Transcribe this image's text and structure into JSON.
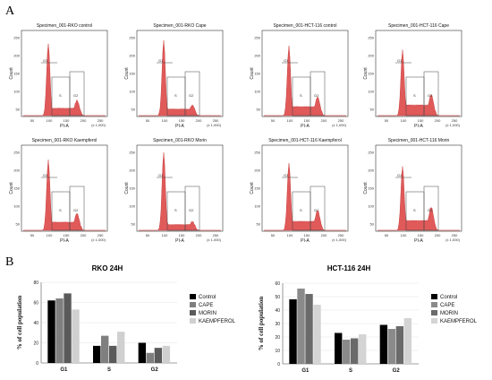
{
  "panel_a_label": "A",
  "panel_b_label": "B",
  "histogram_common": {
    "ylabel": "Count",
    "xlabel": "PI-A",
    "x_ticks": [
      "50",
      "100",
      "150",
      "200",
      "250"
    ],
    "x_scale_note": "(x 1,000)",
    "gate_labels": [
      "G1",
      "S",
      "G2"
    ]
  },
  "histograms": [
    {
      "title": "Specimen_001-RKO control",
      "y_ticks": [
        "250",
        "200",
        "150",
        "100",
        "50"
      ]
    },
    {
      "title": "Specimen_001-RKO Cape",
      "y_ticks": [
        "250",
        "200",
        "150",
        "100",
        "50"
      ]
    },
    {
      "title": "Specimen_001-HCT-116 control",
      "y_ticks": [
        "250",
        "200",
        "150",
        "100",
        "50"
      ]
    },
    {
      "title": "Specimen_001-HCT-116 Cape",
      "y_ticks": [
        "250",
        "200",
        "150",
        "100",
        "50"
      ]
    },
    {
      "title": "Specimen_001-RKO Kaempferol",
      "y_ticks": [
        "250",
        "200",
        "150",
        "100",
        "50"
      ]
    },
    {
      "title": "Specimen_001-RKO Morin",
      "y_ticks": [
        "250",
        "200",
        "150",
        "100",
        "50"
      ]
    },
    {
      "title": "Specimen_001-HCT-116 Kaempferol",
      "y_ticks": [
        "250",
        "200",
        "150",
        "100",
        "50"
      ]
    },
    {
      "title": "Specimen_001-HCT-116 Morin",
      "y_ticks": [
        "250",
        "200",
        "150",
        "100",
        "50"
      ]
    }
  ],
  "chart_data": [
    {
      "type": "bar",
      "title": "RKO 24H",
      "ylabel": "% of cell population",
      "categories": [
        "G1",
        "S",
        "G2"
      ],
      "ylim": [
        0,
        80
      ],
      "y_ticks": [
        0,
        20,
        40,
        60,
        80
      ],
      "legend_position": "right",
      "series": [
        {
          "name": "Control",
          "color": "#000000",
          "values": [
            62,
            17,
            20
          ]
        },
        {
          "name": "CAPE",
          "color": "#7f7f7f",
          "values": [
            64,
            27,
            10
          ]
        },
        {
          "name": "MORIN",
          "color": "#5a5a5a",
          "values": [
            69,
            17,
            15
          ]
        },
        {
          "name": "KAEMPFEROL",
          "color": "#d0d0d0",
          "values": [
            53,
            31,
            17
          ]
        }
      ]
    },
    {
      "type": "bar",
      "title": "HCT-116 24H",
      "ylabel": "% of cell population",
      "categories": [
        "G1",
        "S",
        "G2"
      ],
      "ylim": [
        0,
        60
      ],
      "y_ticks": [
        0,
        10,
        20,
        30,
        40,
        50,
        60
      ],
      "legend_position": "right",
      "series": [
        {
          "name": "Control",
          "color": "#000000",
          "values": [
            48,
            23,
            29
          ]
        },
        {
          "name": "CAPE",
          "color": "#8a8a8a",
          "values": [
            56,
            18,
            26
          ]
        },
        {
          "name": "MORIN",
          "color": "#6a6a6a",
          "values": [
            52,
            19,
            28
          ]
        },
        {
          "name": "KAEMPFEROL",
          "color": "#d4d4d4",
          "values": [
            44,
            22,
            34
          ]
        }
      ]
    }
  ]
}
